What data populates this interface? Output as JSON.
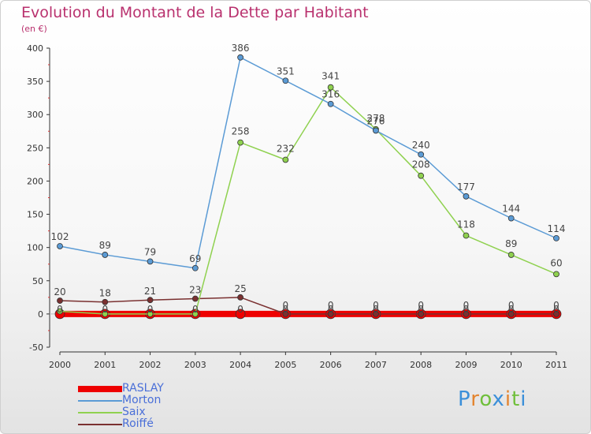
{
  "chart_data": {
    "type": "line",
    "title": "Evolution du Montant de la Dette par Habitant",
    "subtitle": "(en €)",
    "x": [
      "2000",
      "2001",
      "2002",
      "2003",
      "2004",
      "2005",
      "2006",
      "2007",
      "2008",
      "2009",
      "2010",
      "2011"
    ],
    "ylim": [
      -50,
      400
    ],
    "yticks": [
      -50,
      0,
      50,
      100,
      150,
      200,
      250,
      300,
      350,
      400
    ],
    "series": [
      {
        "name": "Morton",
        "color": "#5b9bd5",
        "values": [
          102,
          89,
          79,
          69,
          386,
          351,
          316,
          276,
          240,
          177,
          144,
          114
        ]
      },
      {
        "name": "Saix",
        "color": "#8fd14f",
        "values": [
          4,
          0,
          0,
          0,
          258,
          232,
          341,
          278,
          208,
          118,
          89,
          60
        ]
      },
      {
        "name": "Roiffé",
        "color": "#7a3030",
        "values": [
          20,
          18,
          21,
          23,
          25,
          0,
          0,
          0,
          0,
          0,
          0,
          0
        ]
      },
      {
        "name": "RASLAY",
        "color": "#ee0000",
        "values": [
          0,
          0,
          0,
          0,
          0,
          0,
          0,
          0,
          0,
          0,
          0,
          0
        ]
      }
    ],
    "point_labels": [
      {
        "series": "Morton",
        "labels": [
          "102",
          "89",
          "79",
          "69",
          "386",
          "351",
          "316",
          "276",
          "240",
          "177",
          "144",
          "114"
        ]
      },
      {
        "series": "Saix",
        "labels": [
          "",
          "",
          "",
          "",
          "258",
          "232",
          "341",
          "278",
          "208",
          "118",
          "89",
          "60"
        ]
      },
      {
        "series": "Roiffé",
        "labels": [
          "20",
          "18",
          "21",
          "23",
          "25",
          "0",
          "0",
          "0",
          "0",
          "0",
          "0",
          "0"
        ]
      },
      {
        "series": "RASLAY",
        "labels": [
          "0",
          "0",
          "0",
          "0",
          "0",
          "0",
          "0",
          "0",
          "0",
          "0",
          "0",
          "0"
        ]
      }
    ],
    "legend": [
      "RASLAY",
      "Morton",
      "Saix",
      "Roiffé"
    ],
    "legend_position": "bottom-left"
  },
  "branding": {
    "logo_text": "Proxiti"
  }
}
